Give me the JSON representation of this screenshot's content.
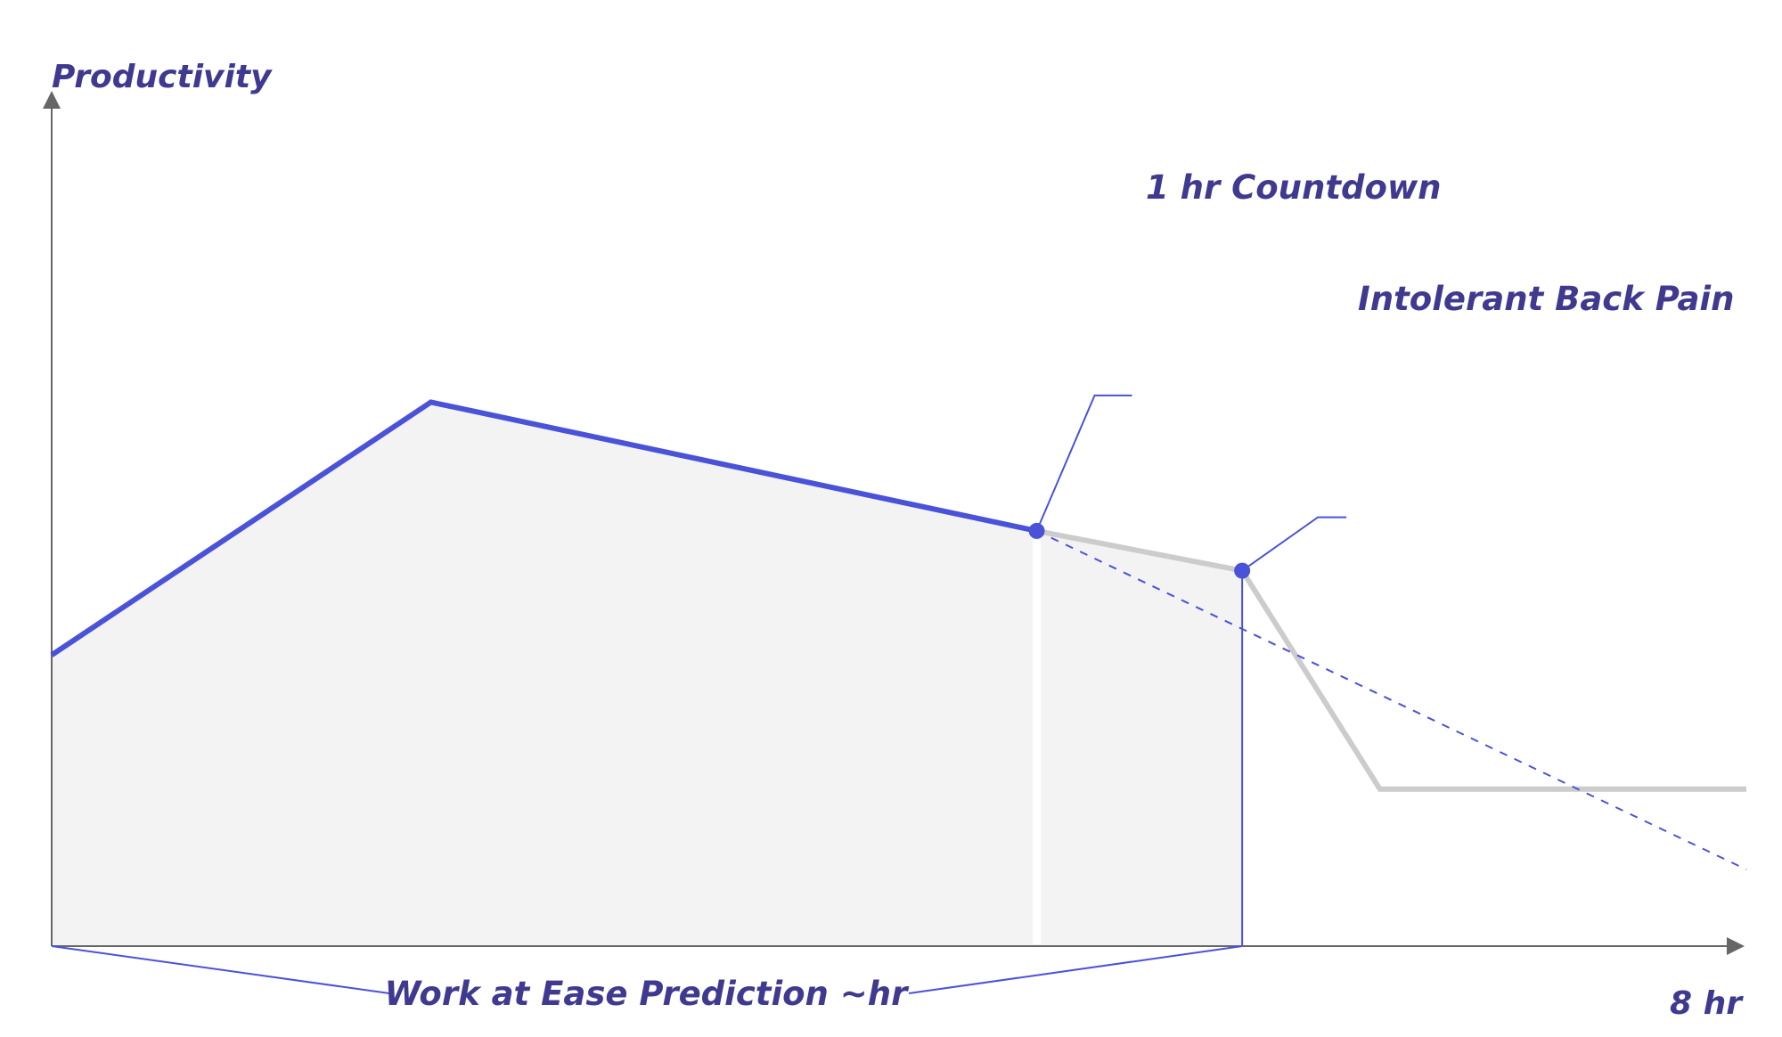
{
  "chart_data": {
    "type": "line",
    "ylabel": "Productivity",
    "x_end_label": "8 hr",
    "xlim": [
      0,
      8
    ],
    "ylim": [
      0,
      10
    ],
    "grid": false,
    "colors": {
      "accent": "#4a52d8",
      "gray_line": "#cccccc",
      "fill": "#f3f3f4",
      "axis": "#666666",
      "text": "#3f3a8f"
    },
    "series": [
      {
        "style": "solid-accent",
        "x": [
          0,
          1.79,
          4.65
        ],
        "y": [
          3.8,
          7.1,
          5.42
        ]
      },
      {
        "style": "solid-gray",
        "x": [
          4.65,
          5.62,
          6.27,
          8.0
        ],
        "y": [
          5.42,
          4.9,
          2.05,
          2.05
        ]
      },
      {
        "style": "dashed-accent",
        "x": [
          4.65,
          8.0
        ],
        "y": [
          5.42,
          1.0
        ]
      }
    ],
    "annotations": [
      {
        "label": "1 hr Countdown",
        "x": 4.65,
        "y": 5.42,
        "marker": true
      },
      {
        "label": "Intolerant Back Pain",
        "x": 5.62,
        "y": 4.9,
        "marker": true
      }
    ],
    "range_label": {
      "label": "Work at Ease Prediction ~hr",
      "x_start": 0,
      "x_end": 5.62
    },
    "white_divider_x": 4.65
  }
}
